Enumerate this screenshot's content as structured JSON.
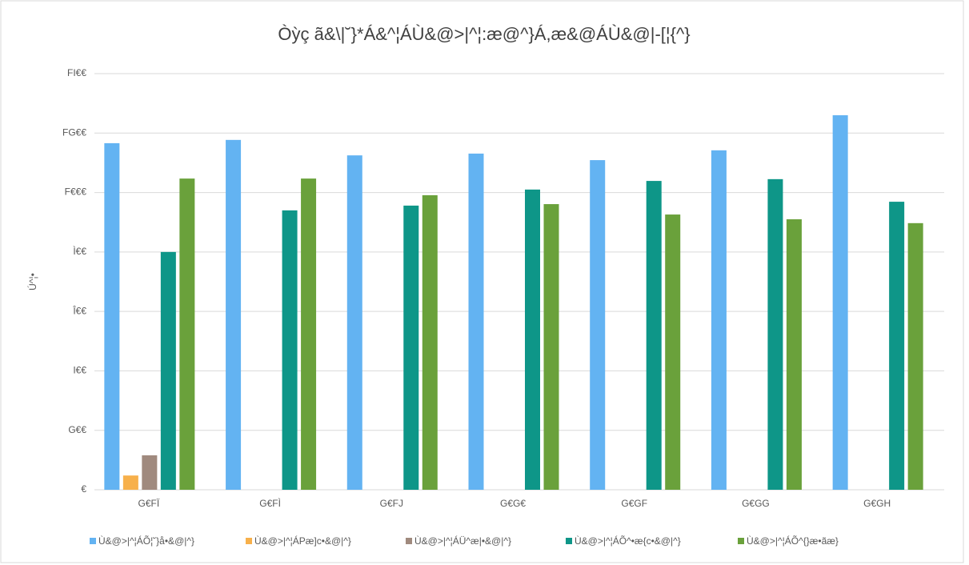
{
  "chart_data": {
    "type": "bar",
    "title": "Òỳç ã&\\|˘}*Á&^¦ÁÙ&@>|^¦:æ@^}Á,æ&@ÁÙ&@|-[¦{^}",
    "y_label": "Ú^¦•",
    "categories": [
      "G€FÏ",
      "G€FÌ",
      "G€FJ",
      "G€G€",
      "G€GF",
      "G€GG",
      "G€GH"
    ],
    "series": [
      {
        "name": "Ù&@>|^¦ÁÕ¦˘}å•&@|^}",
        "color": "#63b3f2",
        "values": [
          1166,
          1177,
          1125,
          1131,
          1109,
          1142,
          1260
        ]
      },
      {
        "name": "Ù&@>|^¦ÁPæ]c•&@|^}",
        "color": "#f7b04b",
        "values": [
          48,
          null,
          null,
          null,
          null,
          null,
          null
        ]
      },
      {
        "name": "Ù&@>|^¦ÁÜ^æ|•&@|^}",
        "color": "#a08a7e",
        "values": [
          116,
          null,
          null,
          null,
          null,
          null,
          null
        ]
      },
      {
        "name": "Ù&@>|^¦ÁÕ^•æ{c•&@|^}",
        "color": "#0e9688",
        "values": [
          800,
          940,
          956,
          1010,
          1039,
          1045,
          969
        ]
      },
      {
        "name": "Ù&@>|^¦ÁÕ^{}æ•ãæ}",
        "color": "#6aa13b",
        "values": [
          1047,
          1047,
          991,
          961,
          926,
          910,
          897
        ]
      }
    ],
    "ylim": [
      0,
      1400
    ],
    "yticks": [
      {
        "value": 0,
        "label": "€"
      },
      {
        "value": 200,
        "label": "G€€"
      },
      {
        "value": 400,
        "label": "I€€"
      },
      {
        "value": 600,
        "label": "Î€€"
      },
      {
        "value": 800,
        "label": "Ì€€"
      },
      {
        "value": 1000,
        "label": "F€€€"
      },
      {
        "value": 1200,
        "label": "FG€€"
      },
      {
        "value": 1400,
        "label": "FI€€"
      }
    ],
    "grid": true
  }
}
